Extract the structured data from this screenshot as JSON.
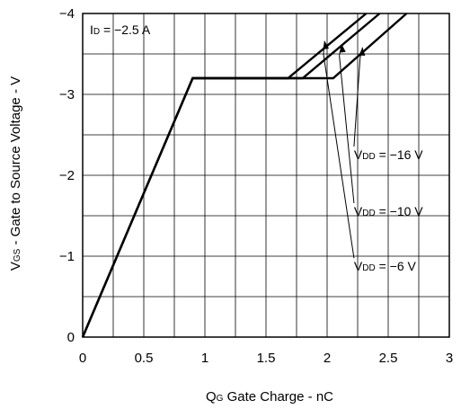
{
  "chart_data": {
    "type": "line",
    "xlabel": {
      "main": "Q",
      "sub": "G",
      "rest": " Gate Charge - nC"
    },
    "ylabel": {
      "main": "V",
      "sub": "GS",
      "rest": " - Gate to Source Voltage - V"
    },
    "xlim": [
      0,
      3
    ],
    "ylim": [
      0,
      -4
    ],
    "x_major_ticks": [
      0,
      0.5,
      1,
      1.5,
      2,
      2.5,
      3
    ],
    "x_tick_labels": [
      "0",
      "0.5",
      "1",
      "1.5",
      "2",
      "2.5",
      "3"
    ],
    "y_major_ticks": [
      0,
      -1,
      -2,
      -3,
      -4
    ],
    "y_tick_labels": [
      "0",
      "−1",
      "−2",
      "−3",
      "−4"
    ],
    "x_grid_step": 0.25,
    "y_grid_step": -0.5,
    "grid": true,
    "condition": {
      "main": "I",
      "sub": "D",
      "rest": " = −2.5 A"
    },
    "series": [
      {
        "name": {
          "main": "V",
          "sub": "DD",
          "rest": " = −6 V"
        },
        "x": [
          0,
          0.9,
          1.68,
          2.32
        ],
        "y": [
          0,
          -3.2,
          -3.2,
          -4.0
        ]
      },
      {
        "name": {
          "main": "V",
          "sub": "DD",
          "rest": " = −10 V"
        },
        "x": [
          0,
          0.9,
          1.8,
          2.43
        ],
        "y": [
          0,
          -3.2,
          -3.2,
          -4.0
        ]
      },
      {
        "name": {
          "main": "V",
          "sub": "DD",
          "rest": " = −16 V"
        },
        "x": [
          0,
          0.9,
          2.05,
          2.65
        ],
        "y": [
          0,
          -3.2,
          -3.2,
          -4.0
        ]
      }
    ],
    "annotations": [
      {
        "series": 2,
        "label_at": [
          2.27,
          -3.45
        ],
        "arrow_to": [
          2.29,
          -3.58
        ],
        "text_at": [
          2.22,
          -2.2
        ]
      },
      {
        "series": 1,
        "label_at": [
          2.1,
          -3.48
        ],
        "arrow_to": [
          2.12,
          -3.62
        ],
        "text_at": [
          2.22,
          -1.5
        ]
      },
      {
        "series": 0,
        "label_at": [
          1.97,
          -3.5
        ],
        "arrow_to": [
          1.98,
          -3.66
        ],
        "text_at": [
          2.22,
          -0.82
        ]
      }
    ]
  }
}
